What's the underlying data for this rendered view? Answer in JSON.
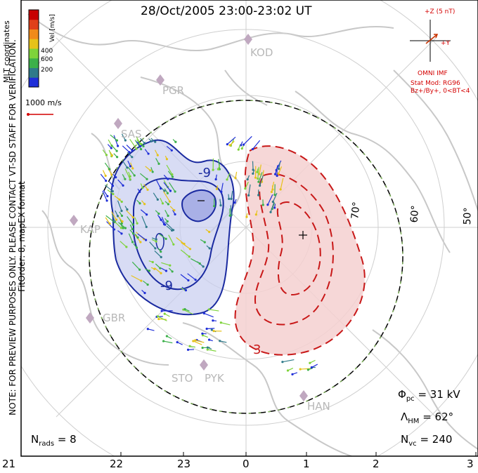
{
  "title": "28/Oct/2005 23:00-23:02 UT",
  "colorbar": {
    "label": "Vel [m/s]",
    "ticks": [
      "600",
      "400",
      "200"
    ],
    "colors": [
      "#1f2fd8",
      "#2f7a8a",
      "#3cb04a",
      "#7ed33a",
      "#e6c21a",
      "#f08a1a",
      "#e0401a",
      "#c80000"
    ]
  },
  "coord_label": "MLT coordinates",
  "scale_label": "1000 m/s",
  "imf": {
    "z_label": "+Z (5 nT)",
    "y_label": "+Y",
    "source": "OMNI IMF",
    "stat_mod": "Stat Mod: RG96",
    "bins": "Bz+/By+, 0<BT<4"
  },
  "note_text": "NOTE: FOR PREVIEW PURPOSES ONLY. PLEASE CONTACT VT-SD STAFF FOR VERIFICATION.",
  "fit_text": "FitOrder: 8, mapEX format",
  "latitude_labels": [
    "70°",
    "60°",
    "50°"
  ],
  "station_labels": [
    "KOD",
    "PGR",
    "SAS",
    "KAP",
    "GBR",
    "STO",
    "PYK",
    "HAN"
  ],
  "contour_labels": {
    "neg": "-9",
    "neg2": "-9",
    "pos": "3"
  },
  "centers": {
    "neg": "−",
    "pos": "+"
  },
  "stats": {
    "phi_symbol": "Φ",
    "phi_sub": "pc",
    "phi_value": "= 31 kV",
    "lambda_symbol": "Λ",
    "lambda_sub": "HM",
    "lambda_value": "= 62°",
    "nvc_symbol": "N",
    "nvc_sub": "vc",
    "nvc_value": "= 240",
    "nrads_symbol": "N",
    "nrads_sub": "rads",
    "nrads_value": "= 8"
  },
  "mlt_ticks": [
    "21",
    "22",
    "23",
    "0",
    "1",
    "2",
    "3"
  ]
}
